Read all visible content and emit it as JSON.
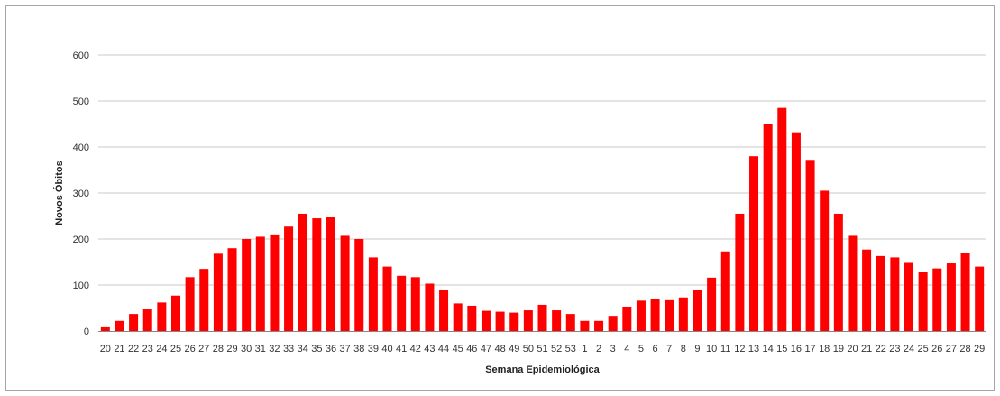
{
  "chart_data": {
    "type": "bar",
    "title": "",
    "xlabel": "Semana Epidemiológica",
    "ylabel": "Novos Óbitos",
    "ylim": [
      0,
      600
    ],
    "yticks": [
      0,
      100,
      200,
      300,
      400,
      500,
      600
    ],
    "grid": true,
    "legend": "none",
    "bar_color": "#ff0000",
    "categories": [
      "20",
      "21",
      "22",
      "23",
      "24",
      "25",
      "26",
      "27",
      "28",
      "29",
      "30",
      "31",
      "32",
      "33",
      "34",
      "35",
      "36",
      "37",
      "38",
      "39",
      "40",
      "41",
      "42",
      "43",
      "44",
      "45",
      "46",
      "47",
      "48",
      "49",
      "50",
      "51",
      "52",
      "53",
      "1",
      "2",
      "3",
      "4",
      "5",
      "6",
      "7",
      "8",
      "9",
      "10",
      "11",
      "12",
      "13",
      "14",
      "15",
      "16",
      "17",
      "18",
      "19",
      "20",
      "21",
      "22",
      "23",
      "24",
      "25",
      "26",
      "27",
      "28",
      "29"
    ],
    "values": [
      10,
      22,
      37,
      47,
      62,
      77,
      117,
      135,
      168,
      180,
      200,
      205,
      210,
      227,
      255,
      245,
      247,
      207,
      200,
      160,
      140,
      120,
      117,
      103,
      90,
      60,
      55,
      44,
      42,
      40,
      45,
      57,
      45,
      37,
      22,
      22,
      33,
      53,
      66,
      70,
      67,
      73,
      90,
      116,
      173,
      255,
      380,
      450,
      485,
      432,
      372,
      305,
      255,
      207,
      177,
      163,
      160,
      148,
      128,
      136,
      147,
      170,
      140
    ]
  }
}
